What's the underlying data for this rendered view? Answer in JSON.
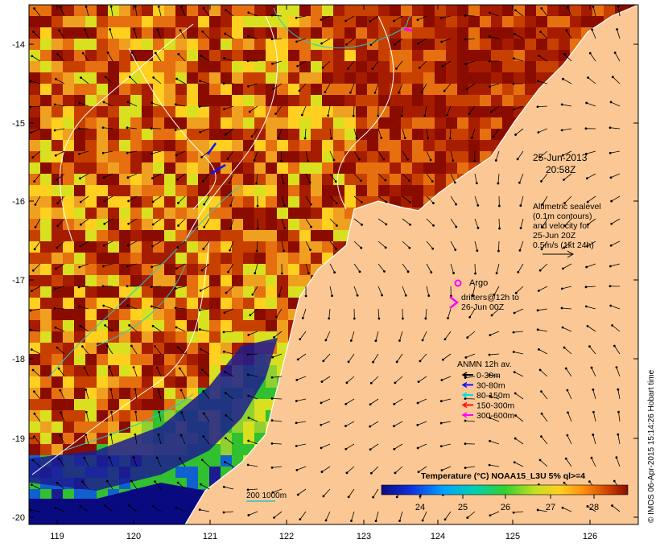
{
  "map": {
    "axes": {
      "lon_ticks": [
        "119",
        "120",
        "121",
        "122",
        "123",
        "124",
        "125",
        "126"
      ],
      "lat_ticks": [
        "-14",
        "-15",
        "-16",
        "-17",
        "-18",
        "-19",
        "-20"
      ]
    },
    "timestamp": {
      "date": "25-Jun-2013",
      "time": "20:58Z"
    },
    "altimetry_note": [
      "Altimetric sealevel",
      "(0.1m contours)",
      "and velocity for",
      "25-Jun 20Z",
      "0.5m/s (1kt 24h)"
    ],
    "argo_label": "Argo",
    "drifters_label": [
      "drifters@12h to",
      "26-Jun 00Z"
    ],
    "anmn": {
      "title": "ANMN 12h av.",
      "items": [
        {
          "label": "0-30m",
          "color": "#000000"
        },
        {
          "label": "30-80m",
          "color": "#1010ff"
        },
        {
          "label": "80-150m",
          "color": "#00e0e0"
        },
        {
          "label": "150-300m",
          "color": "#ff1010"
        },
        {
          "label": "300-600m",
          "color": "#ff00ff"
        }
      ]
    },
    "isobath_label": "200  1000m",
    "colorbar": {
      "title": "Temperature (°C) NOAA15_L3U 5% ql>=4",
      "ticks": [
        "24",
        "25",
        "26",
        "27",
        "28"
      ]
    },
    "credit": "© IMOS 06-Apr-2015 15:14:26 Hobart time",
    "colors": {
      "land": "#fbc895",
      "warm_sst": "#a61c00",
      "cool_sst": "#1c1c90",
      "contour": "#ffffff",
      "isobath_cyan": "#29c6c6",
      "argo": "#ff00ff"
    }
  }
}
